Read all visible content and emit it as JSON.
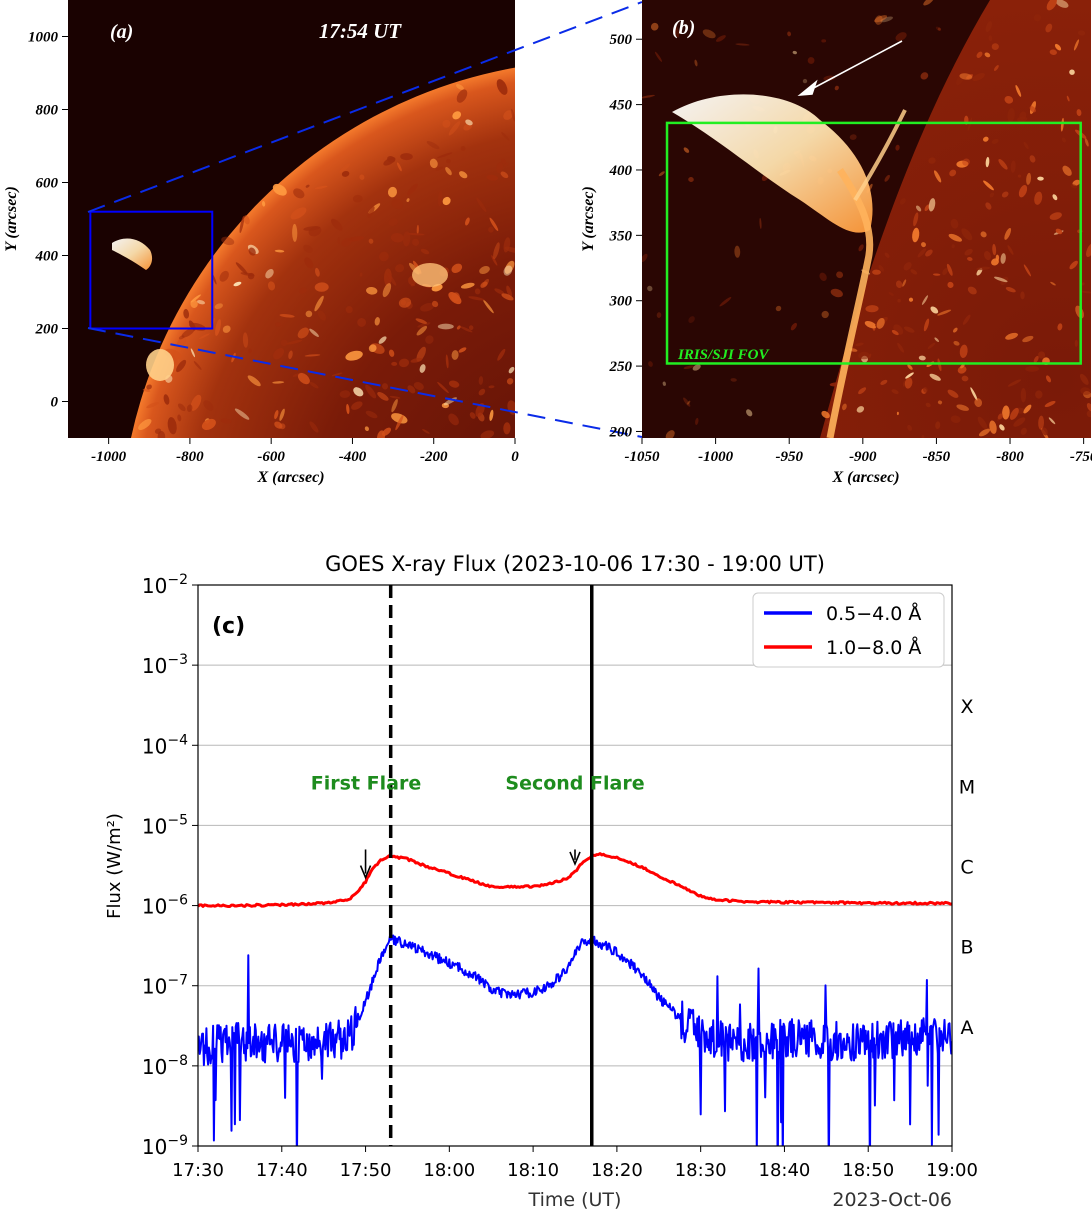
{
  "chart_data": [
    {
      "type": "image",
      "panel_label": "(a)",
      "timestamp": "17:54 UT",
      "xlabel": "X (arcsec)",
      "ylabel": "Y (arcsec)",
      "xlim": [
        -1100,
        0
      ],
      "ylim": [
        -100,
        1100
      ],
      "x_ticks": [
        "-1000",
        "-800",
        "-600",
        "-400",
        "-200",
        "0"
      ],
      "x_tick_values": [
        -1000,
        -800,
        -600,
        -400,
        -200,
        0
      ],
      "y_ticks": [
        "1000",
        "800",
        "600",
        "400",
        "200",
        "0"
      ],
      "y_tick_values": [
        1000,
        800,
        600,
        400,
        200,
        0
      ],
      "box": {
        "x": [
          -1045,
          -745
        ],
        "y": [
          200,
          520
        ],
        "color": "#0000ff"
      }
    },
    {
      "type": "image",
      "panel_label": "(b)",
      "xlabel": "X (arcsec)",
      "ylabel": "Y (arcsec)",
      "xlim": [
        -1050,
        -745
      ],
      "ylim": [
        195,
        530
      ],
      "x_ticks": [
        "-1050",
        "-1000",
        "-950",
        "-900",
        "-850",
        "-800",
        "-750"
      ],
      "x_tick_values": [
        -1050,
        -1000,
        -950,
        -900,
        -850,
        -800,
        -750
      ],
      "y_ticks": [
        "500",
        "450",
        "400",
        "350",
        "300",
        "250",
        "200"
      ],
      "y_tick_values": [
        500,
        450,
        400,
        350,
        300,
        250,
        200
      ],
      "fov_box": {
        "label": "IRIS/SJI FOV",
        "x": [
          -1033,
          -752
        ],
        "y": [
          252,
          436
        ],
        "color": "#22ee22"
      }
    },
    {
      "type": "line",
      "panel_label": "(c)",
      "title": "GOES X-ray Flux (2023-10-06 17:30 - 19:00 UT)",
      "xlabel": "Time (UT)",
      "ylabel": "Flux (W/m²)",
      "yscale": "log",
      "ylim_exp": [
        -9,
        -2
      ],
      "xlim_min": [
        0,
        90
      ],
      "x_ticks": [
        "17:30",
        "17:40",
        "17:50",
        "18:00",
        "18:10",
        "18:20",
        "18:30",
        "18:40",
        "18:50",
        "19:00"
      ],
      "x_tick_minutes": [
        0,
        10,
        20,
        30,
        40,
        50,
        60,
        70,
        80,
        90
      ],
      "y_ticks": [
        {
          "base": "10",
          "exp": "−2",
          "value": -2
        },
        {
          "base": "10",
          "exp": "−3",
          "value": -3
        },
        {
          "base": "10",
          "exp": "−4",
          "value": -4
        },
        {
          "base": "10",
          "exp": "−5",
          "value": -5
        },
        {
          "base": "10",
          "exp": "−6",
          "value": -6
        },
        {
          "base": "10",
          "exp": "−7",
          "value": -7
        },
        {
          "base": "10",
          "exp": "−8",
          "value": -8
        },
        {
          "base": "10",
          "exp": "−9",
          "value": -9
        }
      ],
      "date_label": "2023-Oct-06",
      "class_labels": [
        {
          "label": "X",
          "value": -3.5
        },
        {
          "label": "M",
          "value": -4.5
        },
        {
          "label": "C",
          "value": -5.5
        },
        {
          "label": "B",
          "value": -6.5
        },
        {
          "label": "A",
          "value": -7.5
        }
      ],
      "series": [
        {
          "name": "0.5−4.0 Å",
          "color": "#0000ff",
          "x": [
            0,
            5,
            10,
            15,
            18,
            19,
            20,
            21,
            22,
            23,
            25,
            27,
            30,
            33,
            35,
            37,
            40,
            42,
            44,
            45,
            46,
            47,
            50,
            53,
            55,
            58,
            60,
            62,
            65,
            70,
            75,
            80,
            85,
            90
          ],
          "log_y": [
            -7.75,
            -7.7,
            -7.72,
            -7.7,
            -7.65,
            -7.45,
            -7.2,
            -6.9,
            -6.6,
            -6.42,
            -6.48,
            -6.58,
            -6.72,
            -6.87,
            -7.05,
            -7.12,
            -7.08,
            -7.0,
            -6.8,
            -6.6,
            -6.45,
            -6.42,
            -6.58,
            -6.85,
            -7.15,
            -7.45,
            -7.6,
            -7.68,
            -7.7,
            -7.65,
            -7.7,
            -7.68,
            -7.66,
            -7.65
          ]
        },
        {
          "name": "1.0−8.0 Å",
          "color": "#ff0000",
          "x": [
            0,
            5,
            10,
            15,
            18,
            19,
            20,
            21,
            22,
            23,
            25,
            27,
            30,
            33,
            35,
            37,
            40,
            42,
            44,
            45,
            46,
            47,
            48,
            50,
            53,
            55,
            58,
            60,
            62,
            65,
            70,
            75,
            80,
            85,
            90
          ],
          "log_y": [
            -6.0,
            -6.0,
            -5.99,
            -5.97,
            -5.93,
            -5.84,
            -5.7,
            -5.52,
            -5.42,
            -5.38,
            -5.42,
            -5.5,
            -5.6,
            -5.7,
            -5.76,
            -5.77,
            -5.76,
            -5.73,
            -5.66,
            -5.58,
            -5.45,
            -5.38,
            -5.36,
            -5.4,
            -5.52,
            -5.63,
            -5.78,
            -5.88,
            -5.93,
            -5.95,
            -5.96,
            -5.96,
            -5.97,
            -5.97,
            -5.97
          ]
        }
      ],
      "vlines": [
        {
          "x": 23,
          "style": "dashed",
          "color": "#000000"
        },
        {
          "x": 47,
          "style": "solid",
          "color": "#000000"
        }
      ],
      "annotations": [
        {
          "text": "First Flare",
          "x": 20,
          "y_text": -4.55,
          "y_arrow_start": -5.3,
          "y_arrow_end": -5.65
        },
        {
          "text": "Second Flare",
          "x": 45,
          "y_text": -4.55,
          "y_arrow_start": -5.3,
          "y_arrow_end": -5.48
        }
      ],
      "legend": {
        "location": "top-right"
      }
    }
  ]
}
